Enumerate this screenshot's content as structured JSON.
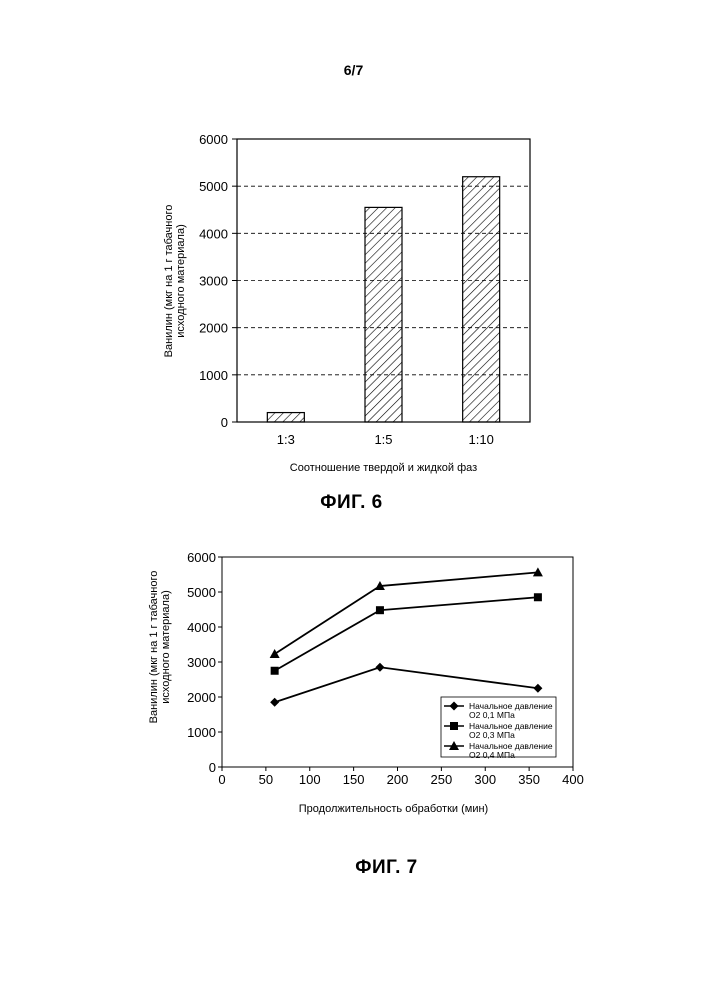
{
  "page_number": "6/7",
  "chart_data": [
    {
      "type": "bar",
      "categories": [
        "1:3",
        "1:5",
        "1:10"
      ],
      "values": [
        200,
        4550,
        5200
      ],
      "xlabel": "Соотношение твердой и жидкой фаз",
      "ylabel_lines": [
        "Ванилин (мкг на 1 г табачного",
        "исходного материала)"
      ],
      "ylim": [
        0,
        6000
      ],
      "yticks": [
        0,
        1000,
        2000,
        3000,
        4000,
        5000,
        6000
      ],
      "grid": "horizontal dashed",
      "pattern": "diagonal hatch",
      "caption": "ФИГ. 6"
    },
    {
      "type": "line",
      "x": [
        60,
        180,
        360
      ],
      "series": [
        {
          "name": "Начальное давление O2 0,1 МПа",
          "legend_lines": [
            "Начальное давление",
            "O2 0,1 МПа"
          ],
          "marker": "diamond",
          "values": [
            1850,
            2850,
            2250
          ]
        },
        {
          "name": "Начальное давление O2 0,3 МПа",
          "legend_lines": [
            "Начальное давление",
            "O2 0,3 МПа"
          ],
          "marker": "square",
          "values": [
            2750,
            4480,
            4850
          ]
        },
        {
          "name": "Начальное давление O2 0,4 МПа",
          "legend_lines": [
            "Начальное давление",
            "O2 0,4 МПа"
          ],
          "marker": "triangle",
          "values": [
            3230,
            5170,
            5560
          ]
        }
      ],
      "xlabel": "Продолжительность обработки (мин)",
      "ylabel_lines": [
        "Ванилин (мкг на 1 г табачного",
        "исходного материала)"
      ],
      "xlim": [
        0,
        400
      ],
      "ylim": [
        0,
        6000
      ],
      "xticks": [
        0,
        50,
        100,
        150,
        200,
        250,
        300,
        350,
        400
      ],
      "yticks": [
        0,
        1000,
        2000,
        3000,
        4000,
        5000,
        6000
      ],
      "legend_position": "bottom-right",
      "caption": "ФИГ. 7"
    }
  ]
}
